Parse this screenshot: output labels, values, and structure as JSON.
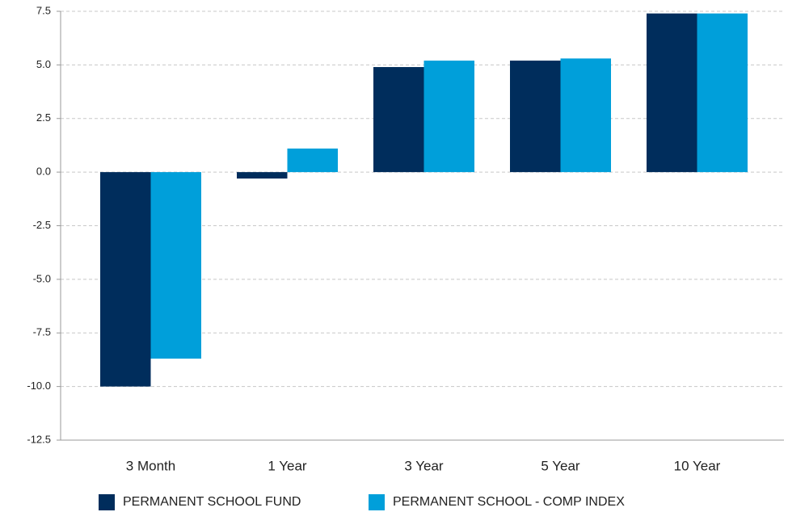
{
  "chart_data": {
    "type": "bar",
    "categories": [
      "3 Month",
      "1 Year",
      "3 Year",
      "5 Year",
      "10 Year"
    ],
    "series": [
      {
        "name": "PERMANENT SCHOOL FUND",
        "color": "#002d5c",
        "values": [
          -10.0,
          -0.3,
          4.9,
          5.2,
          7.4
        ]
      },
      {
        "name": "PERMANENT SCHOOL - COMP INDEX",
        "color": "#009fda",
        "values": [
          -8.7,
          1.1,
          5.2,
          5.3,
          7.4
        ]
      }
    ],
    "ylim": [
      -12.5,
      7.5
    ],
    "yticks": [
      -12.5,
      {
        "value": -10,
        "label": "-10.0"
      },
      -7.5,
      {
        "value": -5,
        "label": "-5.0"
      },
      -2.5,
      {
        "value": 0,
        "label": "0.0"
      },
      2.5,
      {
        "value": 5,
        "label": "5.0"
      },
      7.5
    ],
    "grid": true,
    "legend": "bottom"
  }
}
